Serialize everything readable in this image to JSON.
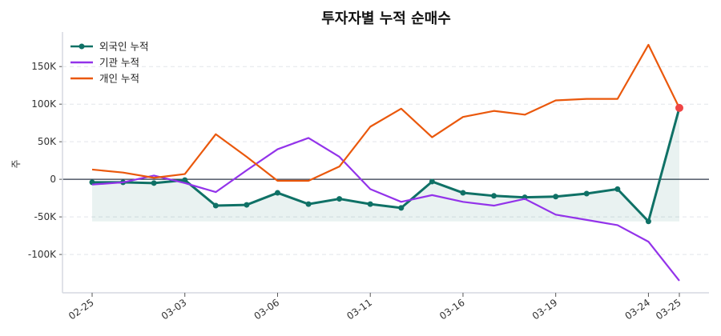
{
  "chart_data": {
    "type": "line",
    "title": "투자자별 누적 순매수",
    "xlabel": "",
    "ylabel": "주",
    "categories": [
      "02-25",
      "",
      "",
      "03-03",
      "",
      "",
      "03-06",
      "",
      "",
      "03-11",
      "",
      "",
      "03-16",
      "",
      "",
      "03-19",
      "",
      "",
      "03-24",
      "03-25"
    ],
    "ylim": [
      -151000,
      196000
    ],
    "yticks": [
      -100000,
      -50000,
      0,
      50000,
      100000,
      150000
    ],
    "ytick_labels": [
      "-100K",
      "-50K",
      "0",
      "50K",
      "100K",
      "150K"
    ],
    "grid": "horizontal dashed",
    "legend_position": "top-left",
    "series": [
      {
        "name": "외국인 누적",
        "color": "#0f7166",
        "markers": true,
        "fill": true,
        "values": [
          -4000,
          -4000,
          -5000,
          -1000,
          -35000,
          -34000,
          -18000,
          -33000,
          -26000,
          -33000,
          -38000,
          -3000,
          -18000,
          -22000,
          -24000,
          -23000,
          -19000,
          -13000,
          -56000,
          95000
        ]
      },
      {
        "name": "기관 누적",
        "color": "#9333ea",
        "markers": false,
        "values": [
          -7000,
          -4000,
          5000,
          -5000,
          -17000,
          12000,
          40000,
          55000,
          30000,
          -13000,
          -30000,
          -21000,
          -30000,
          -35000,
          -26000,
          -47000,
          -54000,
          -61000,
          -83000,
          -135000
        ]
      },
      {
        "name": "개인 누적",
        "color": "#ea580c",
        "markers": false,
        "values": [
          13000,
          9000,
          2000,
          7000,
          60000,
          30000,
          -2000,
          -2000,
          17000,
          70000,
          94000,
          56000,
          83000,
          91000,
          86000,
          105000,
          107000,
          107000,
          179000,
          95000
        ]
      }
    ],
    "highlight": {
      "series": "외국인 누적",
      "index": 19,
      "color": "#ef4444"
    }
  }
}
